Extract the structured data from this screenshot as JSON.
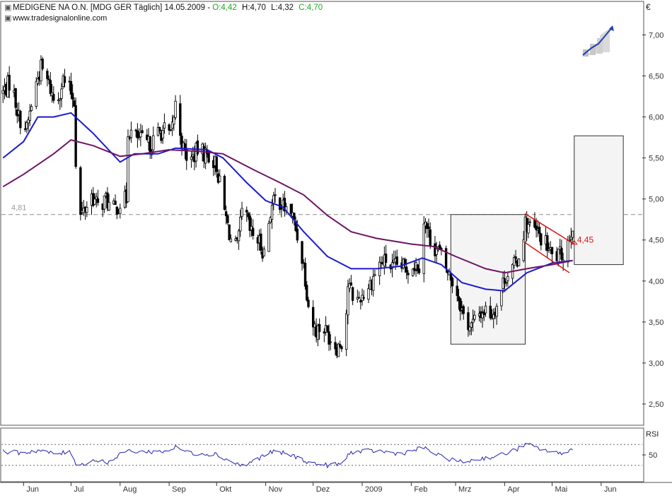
{
  "header": {
    "title_prefix": "MEDIGENE NA O.N. [MDG GER  Täglich] 14.05.2009 - ",
    "open": "O:4,42",
    "high": "H:4,70",
    "low": "L:4,32",
    "close": "C:4,70",
    "website": "www.tradesignalonline.com"
  },
  "colors": {
    "candle": "#000000",
    "ma_fast": "#1a1ad2",
    "ma_slow": "#6e1466",
    "ohlc_text": "#1ca81c",
    "trend_channel": "#e01414",
    "reference_line": "#8c8c8c",
    "rsi_line": "#2424b4",
    "grid_text": "#333333"
  },
  "chart_data": [
    {
      "type": "candlestick",
      "title": "MEDIGENE NA O.N. [MDG GER  Täglich] 14.05.2009",
      "currency_label": "€",
      "y_axis_side": "right",
      "ylim": [
        2.25,
        7.4
      ],
      "y_ticks": [
        "2,50",
        "3,00",
        "3,50",
        "4,00",
        "4,50",
        "5,00",
        "5,50",
        "6,00",
        "6,50",
        "7,00"
      ],
      "y_tick_values": [
        2.5,
        3.0,
        3.5,
        4.0,
        4.5,
        5.0,
        5.5,
        6.0,
        6.5,
        7.0
      ],
      "x_month_labels": [
        "Jun",
        "Jul",
        "Aug",
        "Sep",
        "Okt",
        "Nov",
        "Dez",
        "2009",
        "Feb",
        "Mrz",
        "Apr",
        "Mai",
        "Jun"
      ],
      "x_month_starts": [
        "2008-06-01",
        "2008-07-01",
        "2008-08-01",
        "2008-09-01",
        "2008-10-01",
        "2008-11-01",
        "2008-12-01",
        "2009-01-01",
        "2009-02-01",
        "2009-03-01",
        "2009-04-01",
        "2009-05-01",
        "2009-06-01"
      ],
      "x_range": [
        "2008-05-18",
        "2009-06-27"
      ],
      "price_path": [
        {
          "x": "2008-05-19",
          "y": 6.3
        },
        {
          "x": "2008-05-24",
          "y": 6.45
        },
        {
          "x": "2008-05-29",
          "y": 6.0
        },
        {
          "x": "2008-06-03",
          "y": 5.85
        },
        {
          "x": "2008-06-08",
          "y": 6.35
        },
        {
          "x": "2008-06-12",
          "y": 6.6
        },
        {
          "x": "2008-06-17",
          "y": 6.4
        },
        {
          "x": "2008-06-21",
          "y": 6.15
        },
        {
          "x": "2008-06-26",
          "y": 6.45
        },
        {
          "x": "2008-07-01",
          "y": 6.3
        },
        {
          "x": "2008-07-03",
          "y": 6.2
        },
        {
          "x": "2008-07-05",
          "y": 4.75
        },
        {
          "x": "2008-07-09",
          "y": 4.85
        },
        {
          "x": "2008-07-14",
          "y": 5.05
        },
        {
          "x": "2008-07-18",
          "y": 4.9
        },
        {
          "x": "2008-07-23",
          "y": 5.0
        },
        {
          "x": "2008-07-27",
          "y": 4.85
        },
        {
          "x": "2008-08-01",
          "y": 4.95
        },
        {
          "x": "2008-08-05",
          "y": 5.0
        },
        {
          "x": "2008-08-06",
          "y": 5.85
        },
        {
          "x": "2008-08-11",
          "y": 5.75
        },
        {
          "x": "2008-08-16",
          "y": 5.7
        },
        {
          "x": "2008-08-20",
          "y": 5.65
        },
        {
          "x": "2008-08-25",
          "y": 5.8
        },
        {
          "x": "2008-08-30",
          "y": 5.85
        },
        {
          "x": "2008-09-02",
          "y": 5.75
        },
        {
          "x": "2008-09-05",
          "y": 6.15
        },
        {
          "x": "2008-09-10",
          "y": 5.6
        },
        {
          "x": "2008-09-14",
          "y": 5.45
        },
        {
          "x": "2008-09-19",
          "y": 5.6
        },
        {
          "x": "2008-09-24",
          "y": 5.55
        },
        {
          "x": "2008-09-28",
          "y": 5.5
        },
        {
          "x": "2008-10-01",
          "y": 5.4
        },
        {
          "x": "2008-10-06",
          "y": 4.85
        },
        {
          "x": "2008-10-10",
          "y": 4.5
        },
        {
          "x": "2008-10-14",
          "y": 4.4
        },
        {
          "x": "2008-10-18",
          "y": 4.95
        },
        {
          "x": "2008-10-22",
          "y": 4.6
        },
        {
          "x": "2008-10-27",
          "y": 4.5
        },
        {
          "x": "2008-10-31",
          "y": 4.35
        },
        {
          "x": "2008-11-04",
          "y": 4.85
        },
        {
          "x": "2008-11-08",
          "y": 5.05
        },
        {
          "x": "2008-11-12",
          "y": 4.9
        },
        {
          "x": "2008-11-17",
          "y": 4.85
        },
        {
          "x": "2008-11-21",
          "y": 4.55
        },
        {
          "x": "2008-11-25",
          "y": 4.2
        },
        {
          "x": "2008-11-29",
          "y": 3.55
        },
        {
          "x": "2008-12-03",
          "y": 3.4
        },
        {
          "x": "2008-12-07",
          "y": 3.45
        },
        {
          "x": "2008-12-12",
          "y": 3.3
        },
        {
          "x": "2008-12-16",
          "y": 3.2
        },
        {
          "x": "2008-12-21",
          "y": 3.3
        },
        {
          "x": "2008-12-23",
          "y": 3.95
        },
        {
          "x": "2008-12-28",
          "y": 3.75
        },
        {
          "x": "2009-01-02",
          "y": 3.85
        },
        {
          "x": "2009-01-07",
          "y": 4.0
        },
        {
          "x": "2009-01-11",
          "y": 4.2
        },
        {
          "x": "2009-01-16",
          "y": 4.25
        },
        {
          "x": "2009-01-20",
          "y": 4.15
        },
        {
          "x": "2009-01-24",
          "y": 4.2
        },
        {
          "x": "2009-01-29",
          "y": 4.15
        },
        {
          "x": "2009-02-02",
          "y": 4.2
        },
        {
          "x": "2009-02-06",
          "y": 4.2
        },
        {
          "x": "2009-02-09",
          "y": 4.75
        },
        {
          "x": "2009-02-14",
          "y": 4.45
        },
        {
          "x": "2009-02-19",
          "y": 4.35
        },
        {
          "x": "2009-02-23",
          "y": 4.15
        },
        {
          "x": "2009-02-27",
          "y": 4.0
        },
        {
          "x": "2009-03-03",
          "y": 3.8
        },
        {
          "x": "2009-03-07",
          "y": 3.5
        },
        {
          "x": "2009-03-11",
          "y": 3.45
        },
        {
          "x": "2009-03-16",
          "y": 3.6
        },
        {
          "x": "2009-03-20",
          "y": 3.65
        },
        {
          "x": "2009-03-24",
          "y": 3.6
        },
        {
          "x": "2009-03-28",
          "y": 3.75
        },
        {
          "x": "2009-04-01",
          "y": 4.05
        },
        {
          "x": "2009-04-06",
          "y": 4.15
        },
        {
          "x": "2009-04-10",
          "y": 4.3
        },
        {
          "x": "2009-04-14",
          "y": 4.7
        },
        {
          "x": "2009-04-18",
          "y": 4.65
        },
        {
          "x": "2009-04-23",
          "y": 4.55
        },
        {
          "x": "2009-04-27",
          "y": 4.45
        },
        {
          "x": "2009-05-01",
          "y": 4.3
        },
        {
          "x": "2009-05-05",
          "y": 4.3
        },
        {
          "x": "2009-05-09",
          "y": 4.35
        },
        {
          "x": "2009-05-14",
          "y": 4.7
        }
      ],
      "series": [
        {
          "color": "#1a1ad2",
          "points": [
            {
              "x": "2008-05-19",
              "y": 5.5
            },
            {
              "x": "2008-06-01",
              "y": 5.7
            },
            {
              "x": "2008-06-10",
              "y": 6.0
            },
            {
              "x": "2008-06-20",
              "y": 6.0
            },
            {
              "x": "2008-07-01",
              "y": 6.05
            },
            {
              "x": "2008-07-15",
              "y": 5.8
            },
            {
              "x": "2008-08-01",
              "y": 5.45
            },
            {
              "x": "2008-08-10",
              "y": 5.55
            },
            {
              "x": "2008-08-25",
              "y": 5.55
            },
            {
              "x": "2008-09-05",
              "y": 5.62
            },
            {
              "x": "2008-09-25",
              "y": 5.6
            },
            {
              "x": "2008-10-05",
              "y": 5.5
            },
            {
              "x": "2008-10-20",
              "y": 5.2
            },
            {
              "x": "2008-11-01",
              "y": 4.98
            },
            {
              "x": "2008-11-12",
              "y": 4.9
            },
            {
              "x": "2008-11-25",
              "y": 4.6
            },
            {
              "x": "2008-12-10",
              "y": 4.3
            },
            {
              "x": "2008-12-25",
              "y": 4.15
            },
            {
              "x": "2009-01-10",
              "y": 4.15
            },
            {
              "x": "2009-01-25",
              "y": 4.18
            },
            {
              "x": "2009-02-08",
              "y": 4.28
            },
            {
              "x": "2009-02-20",
              "y": 4.2
            },
            {
              "x": "2009-03-05",
              "y": 3.98
            },
            {
              "x": "2009-03-20",
              "y": 3.9
            },
            {
              "x": "2009-04-01",
              "y": 3.88
            },
            {
              "x": "2009-04-15",
              "y": 4.1
            },
            {
              "x": "2009-05-01",
              "y": 4.22
            },
            {
              "x": "2009-05-14",
              "y": 4.25
            }
          ]
        },
        {
          "color": "#6e1466",
          "points": [
            {
              "x": "2008-05-19",
              "y": 5.15
            },
            {
              "x": "2008-06-01",
              "y": 5.3
            },
            {
              "x": "2008-06-20",
              "y": 5.55
            },
            {
              "x": "2008-07-01",
              "y": 5.72
            },
            {
              "x": "2008-07-15",
              "y": 5.65
            },
            {
              "x": "2008-08-01",
              "y": 5.52
            },
            {
              "x": "2008-08-15",
              "y": 5.55
            },
            {
              "x": "2008-09-01",
              "y": 5.6
            },
            {
              "x": "2008-09-20",
              "y": 5.58
            },
            {
              "x": "2008-10-05",
              "y": 5.55
            },
            {
              "x": "2008-10-25",
              "y": 5.35
            },
            {
              "x": "2008-11-10",
              "y": 5.2
            },
            {
              "x": "2008-11-25",
              "y": 5.05
            },
            {
              "x": "2008-12-10",
              "y": 4.8
            },
            {
              "x": "2008-12-25",
              "y": 4.6
            },
            {
              "x": "2009-01-10",
              "y": 4.52
            },
            {
              "x": "2009-02-01",
              "y": 4.45
            },
            {
              "x": "2009-02-15",
              "y": 4.42
            },
            {
              "x": "2009-03-01",
              "y": 4.3
            },
            {
              "x": "2009-03-20",
              "y": 4.15
            },
            {
              "x": "2009-04-01",
              "y": 4.1
            },
            {
              "x": "2009-04-15",
              "y": 4.15
            },
            {
              "x": "2009-05-01",
              "y": 4.2
            },
            {
              "x": "2009-05-14",
              "y": 4.25
            }
          ]
        }
      ],
      "reference_line": {
        "value": 4.81,
        "label": "4,81"
      },
      "rectangles": [
        {
          "x0": "2009-02-26",
          "x1": "2009-04-14",
          "y0": 3.23,
          "y1": 4.81
        },
        {
          "x0": "2009-05-15",
          "x1": "2009-06-15",
          "y0": 4.2,
          "y1": 5.77
        }
      ],
      "channel_lines": [
        {
          "from": {
            "x": "2009-04-14",
            "y": 4.82
          },
          "to": {
            "x": "2009-05-15",
            "y": 4.45
          }
        },
        {
          "from": {
            "x": "2009-04-13",
            "y": 4.48
          },
          "to": {
            "x": "2009-05-12",
            "y": 4.1
          }
        }
      ],
      "annotations": [
        {
          "x": "2009-05-15",
          "y": 4.5,
          "text": "4,45"
        }
      ]
    },
    {
      "type": "line",
      "title": "RSI",
      "ylim": [
        0,
        100
      ],
      "y_ticks": [
        "50"
      ],
      "y_tick_values": [
        50
      ],
      "bands": [
        70,
        30
      ],
      "series": [
        {
          "color": "#2424b4",
          "points": [
            {
              "x": "2008-05-19",
              "y": 56
            },
            {
              "x": "2008-06-01",
              "y": 54
            },
            {
              "x": "2008-06-10",
              "y": 59
            },
            {
              "x": "2008-06-20",
              "y": 52
            },
            {
              "x": "2008-07-01",
              "y": 55
            },
            {
              "x": "2008-07-05",
              "y": 28
            },
            {
              "x": "2008-07-15",
              "y": 40
            },
            {
              "x": "2008-07-25",
              "y": 36
            },
            {
              "x": "2008-08-05",
              "y": 58
            },
            {
              "x": "2008-08-15",
              "y": 56
            },
            {
              "x": "2008-08-30",
              "y": 57
            },
            {
              "x": "2008-09-05",
              "y": 64
            },
            {
              "x": "2008-09-15",
              "y": 53
            },
            {
              "x": "2008-09-30",
              "y": 52
            },
            {
              "x": "2008-10-10",
              "y": 38
            },
            {
              "x": "2008-10-18",
              "y": 28
            },
            {
              "x": "2008-10-25",
              "y": 40
            },
            {
              "x": "2008-11-05",
              "y": 56
            },
            {
              "x": "2008-11-15",
              "y": 52
            },
            {
              "x": "2008-11-30",
              "y": 34
            },
            {
              "x": "2008-12-10",
              "y": 30
            },
            {
              "x": "2008-12-20",
              "y": 33
            },
            {
              "x": "2008-12-24",
              "y": 55
            },
            {
              "x": "2009-01-10",
              "y": 58
            },
            {
              "x": "2009-01-25",
              "y": 52
            },
            {
              "x": "2009-02-09",
              "y": 64
            },
            {
              "x": "2009-02-20",
              "y": 46
            },
            {
              "x": "2009-03-05",
              "y": 36
            },
            {
              "x": "2009-03-15",
              "y": 42
            },
            {
              "x": "2009-03-28",
              "y": 48
            },
            {
              "x": "2009-04-08",
              "y": 60
            },
            {
              "x": "2009-04-15",
              "y": 70
            },
            {
              "x": "2009-04-25",
              "y": 60
            },
            {
              "x": "2009-05-05",
              "y": 52
            },
            {
              "x": "2009-05-14",
              "y": 61
            }
          ]
        }
      ]
    }
  ]
}
